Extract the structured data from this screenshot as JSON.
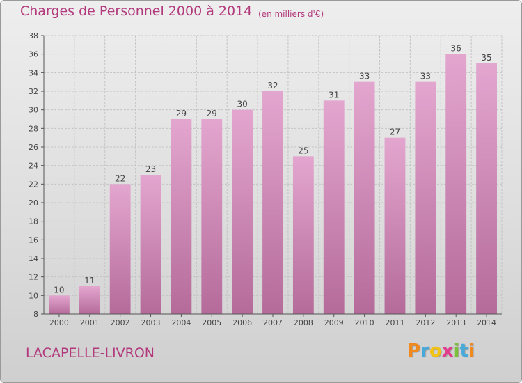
{
  "chart_data": {
    "type": "bar",
    "title": "Charges de Personnel 2000 à 2014",
    "subtitle": "(en milliers d'€)",
    "categories": [
      "2000",
      "2001",
      "2002",
      "2003",
      "2004",
      "2005",
      "2006",
      "2007",
      "2008",
      "2009",
      "2010",
      "2011",
      "2012",
      "2013",
      "2014"
    ],
    "values": [
      10,
      11,
      22,
      23,
      29,
      29,
      30,
      32,
      25,
      31,
      33,
      27,
      33,
      36,
      35
    ],
    "ylim": [
      8,
      38
    ],
    "yticks": [
      8,
      10,
      12,
      14,
      16,
      18,
      20,
      22,
      24,
      26,
      28,
      30,
      32,
      34,
      36,
      38
    ],
    "grid": true,
    "bar_color": "#d88bbd",
    "bar_color_dark": "#b86c9e"
  },
  "place": "LACAPELLE-LIVRON",
  "logo": {
    "text": "Proxiti",
    "letters": [
      {
        "char": "P",
        "color": "#f08a1c"
      },
      {
        "char": "r",
        "color": "#49a9d8"
      },
      {
        "char": "o",
        "color": "#f2c314"
      },
      {
        "char": "x",
        "color": "#e23c8c"
      },
      {
        "char": "i",
        "color": "#7bbf3a"
      },
      {
        "char": "t",
        "color": "#49a9d8"
      },
      {
        "char": "i",
        "color": "#f08a1c"
      }
    ]
  }
}
